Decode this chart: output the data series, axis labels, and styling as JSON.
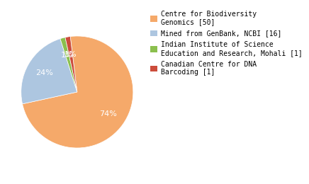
{
  "labels": [
    "Centre for Biodiversity\nGenomics [50]",
    "Mined from GenBank, NCBI [16]",
    "Indian Institute of Science\nEducation and Research, Mohali [1]",
    "Canadian Centre for DNA\nBarcoding [1]"
  ],
  "values": [
    50,
    16,
    1,
    1
  ],
  "colors": [
    "#f5a96a",
    "#adc6e0",
    "#8bbf4e",
    "#cc4c3b"
  ],
  "startangle": 97,
  "pct_fontsize": 8,
  "legend_fontsize": 7,
  "background_color": "#ffffff"
}
